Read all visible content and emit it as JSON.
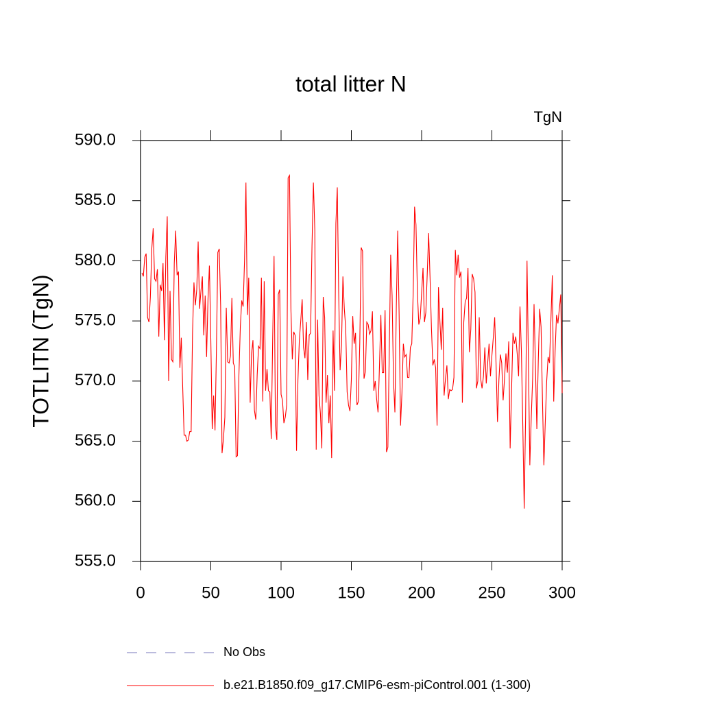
{
  "chart_data": {
    "type": "line",
    "title": "total litter N",
    "units_label": "TgN",
    "ylabel": "TOTLITN  (TgN)",
    "xlim": [
      0,
      300
    ],
    "xticks": [
      0,
      50,
      100,
      150,
      200,
      250,
      300
    ],
    "ylim": [
      555,
      590
    ],
    "yticks": [
      {
        "value": 555,
        "label": "555.0"
      },
      {
        "value": 560,
        "label": "560.0"
      },
      {
        "value": 565,
        "label": "565.0"
      },
      {
        "value": 570,
        "label": "570.0"
      },
      {
        "value": 575,
        "label": "575.0"
      },
      {
        "value": 580,
        "label": "580.0"
      },
      {
        "value": 585,
        "label": "585.0"
      },
      {
        "value": 590,
        "label": "590.0"
      }
    ],
    "reference_series": {
      "name": "No Obs",
      "color": "#7777bb",
      "style": "dashed"
    },
    "x": [
      1,
      2,
      3,
      4,
      5,
      6,
      7,
      8,
      9,
      10,
      11,
      12,
      13,
      14,
      15,
      16,
      17,
      18,
      19,
      20,
      21,
      22,
      23,
      24,
      25,
      26,
      27,
      28,
      29,
      30,
      31,
      32,
      33,
      34,
      35,
      36,
      37,
      38,
      39,
      40,
      41,
      42,
      43,
      44,
      45,
      46,
      47,
      48,
      49,
      50,
      51,
      52,
      53,
      54,
      55,
      56,
      57,
      58,
      59,
      60,
      61,
      62,
      63,
      64,
      65,
      66,
      67,
      68,
      69,
      70,
      71,
      72,
      73,
      74,
      75,
      76,
      77,
      78,
      79,
      80,
      81,
      82,
      83,
      84,
      85,
      86,
      87,
      88,
      89,
      90,
      91,
      92,
      93,
      94,
      95,
      96,
      97,
      98,
      99,
      100,
      101,
      102,
      103,
      104,
      105,
      106,
      107,
      108,
      109,
      110,
      111,
      112,
      113,
      114,
      115,
      116,
      117,
      118,
      119,
      120,
      121,
      122,
      123,
      124,
      125,
      126,
      127,
      128,
      129,
      130,
      131,
      132,
      133,
      134,
      135,
      136,
      137,
      138,
      139,
      140,
      141,
      142,
      143,
      144,
      145,
      146,
      147,
      148,
      149,
      150,
      151,
      152,
      153,
      154,
      155,
      156,
      157,
      158,
      159,
      160,
      161,
      162,
      163,
      164,
      165,
      166,
      167,
      168,
      169,
      170,
      171,
      172,
      173,
      174,
      175,
      176,
      177,
      178,
      179,
      180,
      181,
      182,
      183,
      184,
      185,
      186,
      187,
      188,
      189,
      190,
      191,
      192,
      193,
      194,
      195,
      196,
      197,
      198,
      199,
      200,
      201,
      202,
      203,
      204,
      205,
      206,
      207,
      208,
      209,
      210,
      211,
      212,
      213,
      214,
      215,
      216,
      217,
      218,
      219,
      220,
      221,
      222,
      223,
      224,
      225,
      226,
      227,
      228,
      229,
      230,
      231,
      232,
      233,
      234,
      235,
      236,
      237,
      238,
      239,
      240,
      241,
      242,
      243,
      244,
      245,
      246,
      247,
      248,
      249,
      250,
      251,
      252,
      253,
      254,
      255,
      256,
      257,
      258,
      259,
      260,
      261,
      262,
      263,
      264,
      265,
      266,
      267,
      268,
      269,
      270,
      271,
      272,
      273,
      274,
      275,
      276,
      277,
      278,
      279,
      280,
      281,
      282,
      283,
      284,
      285,
      286,
      287,
      288,
      289,
      290,
      291,
      292,
      293,
      294,
      295,
      296,
      297,
      298,
      299,
      300
    ],
    "series": [
      {
        "name": "b.e21.B1850.f09_g17.CMIP6-esm-piControl.001 (1-300)",
        "color": "#ff0000",
        "style": "solid",
        "values": [
          579,
          578.7,
          580.3,
          580.6,
          575.3,
          574.9,
          577,
          581,
          582.7,
          578.5,
          578.3,
          579.3,
          573.7,
          578,
          577.5,
          579.8,
          573.4,
          580.3,
          583.7,
          570,
          577.5,
          571.8,
          571.6,
          579.8,
          582.5,
          578.8,
          579.1,
          571.1,
          573.6,
          569.5,
          565.5,
          565.5,
          565,
          565.1,
          565.8,
          565.8,
          574,
          578.2,
          576.3,
          577.6,
          581.6,
          576,
          577.5,
          578.7,
          573.8,
          577.1,
          572,
          576.8,
          579.6,
          573.5,
          566,
          568.8,
          565.9,
          572.6,
          580.7,
          581,
          576.3,
          564,
          565.2,
          567,
          576.1,
          571.6,
          571.5,
          572.1,
          576.9,
          571.5,
          571.2,
          563.7,
          563.8,
          570.5,
          574.5,
          576.7,
          576.2,
          580,
          586.5,
          575.5,
          578.6,
          568.2,
          572.3,
          573.4,
          567.6,
          566.8,
          570.5,
          572.9,
          572.7,
          578.6,
          568.3,
          578.3,
          569.2,
          571,
          569.2,
          569.1,
          565.2,
          573.3,
          580.4,
          566.3,
          565.1,
          577.2,
          577.6,
          568.9,
          568.4,
          566.5,
          567,
          568,
          586.9,
          587.1,
          576,
          571.8,
          574.1,
          573.8,
          564.2,
          570.1,
          573.4,
          575,
          576.8,
          572.8,
          571.9,
          574.9,
          570.1,
          573.8,
          574,
          581.2,
          586.5,
          582.6,
          564.3,
          575.1,
          568.8,
          567.3,
          564.4,
          577,
          575.3,
          568.2,
          570.5,
          566.5,
          568.8,
          563.6,
          574.2,
          569.2,
          583.1,
          586.1,
          577.3,
          570.9,
          573,
          578.7,
          576,
          574.4,
          569.1,
          568,
          567.5,
          570.1,
          575.4,
          573.1,
          574,
          568,
          568.3,
          573.2,
          581.1,
          580.8,
          570.2,
          570.8,
          574.9,
          574.7,
          573.9,
          574.2,
          575.8,
          569.2,
          570,
          568.5,
          567.4,
          571.2,
          575.5,
          570.7,
          570.7,
          575.9,
          564.1,
          564.5,
          572.6,
          580.5,
          577.1,
          570,
          567.4,
          576.2,
          582.5,
          575.5,
          566.3,
          569,
          573.1,
          572,
          572.2,
          570.3,
          570.3,
          572.8,
          573.1,
          577.3,
          584.5,
          583,
          577.4,
          574.7,
          575.2,
          577.3,
          579.4,
          574.9,
          575.7,
          578.9,
          582.3,
          578.6,
          574.4,
          571.3,
          571.8,
          571.1,
          566.3,
          577.8,
          575,
          572.6,
          576.1,
          568.8,
          570.2,
          571.3,
          568.5,
          569.3,
          569.2,
          569.3,
          570.3,
          580.9,
          578.8,
          580.5,
          578.6,
          579.1,
          568.2,
          574.9,
          576.6,
          576.9,
          579.4,
          572.4,
          574.3,
          578.9,
          578.5,
          577.4,
          569.4,
          570,
          575.3,
          570.2,
          569.4,
          570.4,
          572.8,
          569.8,
          571.5,
          573.1,
          570.4,
          572.1,
          573.6,
          575.3,
          571.3,
          566.6,
          570.1,
          572.2,
          571.5,
          568.4,
          570.2,
          572.3,
          570.7,
          573.3,
          564.4,
          569.2,
          574,
          573.1,
          573.7,
          572.3,
          570.4,
          576.2,
          572.5,
          566.3,
          559.4,
          567.1,
          580,
          571.7,
          563,
          566.9,
          570.2,
          576.4,
          571.2,
          566,
          571.6,
          576,
          574.5,
          568.4,
          563,
          566.6,
          570,
          572,
          571.5,
          575.1,
          578.8,
          568.3,
          572.5,
          575.5,
          574.8,
          576,
          577.2,
          569
        ]
      }
    ]
  }
}
